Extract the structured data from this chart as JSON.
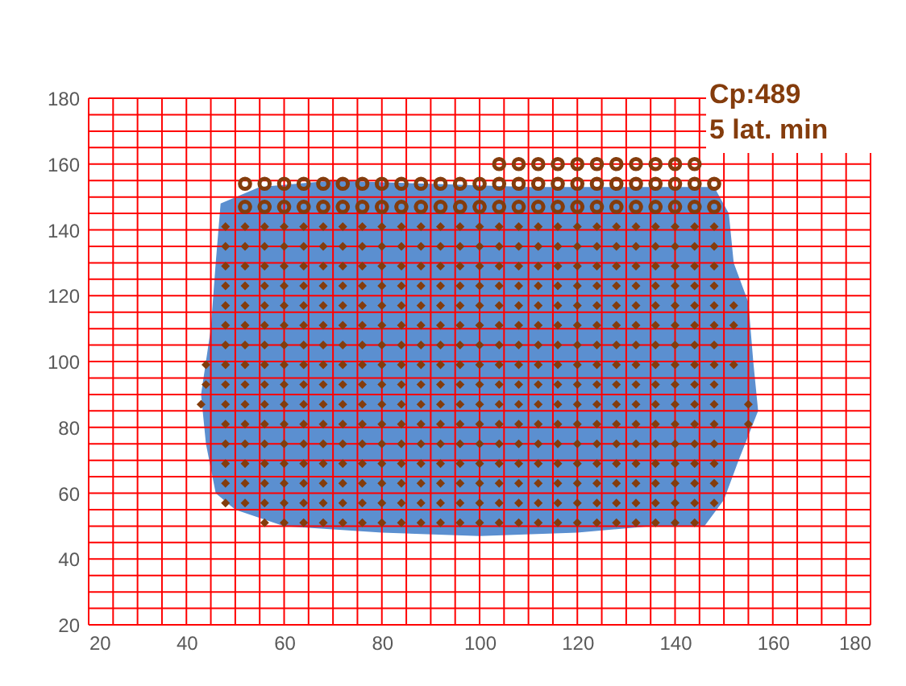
{
  "chart_data": {
    "type": "scatter",
    "xlim": [
      20,
      180
    ],
    "ylim": [
      20,
      180
    ],
    "xticks": [
      20,
      {
        "value": 25,
        "label": null
      },
      {
        "value": 30,
        "label": null
      },
      {
        "value": 35,
        "label": null
      },
      40,
      {
        "value": 45,
        "label": null
      },
      {
        "value": 50,
        "label": null
      },
      {
        "value": 55,
        "label": null
      },
      60,
      {
        "value": 65,
        "label": null
      },
      {
        "value": 70,
        "label": null
      },
      {
        "value": 75,
        "label": null
      },
      80,
      {
        "value": 85,
        "label": null
      },
      {
        "value": 90,
        "label": null
      },
      {
        "value": 95,
        "label": null
      },
      100,
      {
        "value": 105,
        "label": null
      },
      {
        "value": 110,
        "label": null
      },
      {
        "value": 115,
        "label": null
      },
      120,
      {
        "value": 125,
        "label": null
      },
      {
        "value": 130,
        "label": null
      },
      {
        "value": 135,
        "label": null
      },
      140,
      {
        "value": 145,
        "label": null
      },
      {
        "value": 150,
        "label": null
      },
      {
        "value": 155,
        "label": null
      },
      160,
      {
        "value": 165,
        "label": null
      },
      {
        "value": 170,
        "label": null
      },
      {
        "value": 175,
        "label": null
      },
      180
    ],
    "yticks": [
      20,
      {
        "value": 25,
        "label": null
      },
      {
        "value": 30,
        "label": null
      },
      {
        "value": 35,
        "label": null
      },
      40,
      {
        "value": 45,
        "label": null
      },
      {
        "value": 50,
        "label": null
      },
      {
        "value": 55,
        "label": null
      },
      60,
      {
        "value": 65,
        "label": null
      },
      {
        "value": 70,
        "label": null
      },
      {
        "value": 75,
        "label": null
      },
      80,
      {
        "value": 85,
        "label": null
      },
      {
        "value": 90,
        "label": null
      },
      {
        "value": 95,
        "label": null
      },
      100,
      {
        "value": 105,
        "label": null
      },
      {
        "value": 110,
        "label": null
      },
      {
        "value": 115,
        "label": null
      },
      120,
      {
        "value": 125,
        "label": null
      },
      {
        "value": 130,
        "label": null
      },
      {
        "value": 135,
        "label": null
      },
      140,
      {
        "value": 145,
        "label": null
      },
      {
        "value": 150,
        "label": null
      },
      {
        "value": 155,
        "label": null
      },
      160,
      {
        "value": 165,
        "label": null
      },
      {
        "value": 170,
        "label": null
      },
      {
        "value": 175,
        "label": null
      },
      180
    ],
    "grid": true,
    "annotations": [
      "Cp:489",
      "5 lat. min"
    ],
    "series": [
      {
        "type": "area",
        "color": "#5b8fd0",
        "x": [
          47,
          55,
          70,
          90,
          110,
          130,
          148,
          151,
          152,
          155,
          156,
          157,
          153,
          150,
          146,
          135,
          120,
          100,
          80,
          60,
          50,
          46,
          44,
          43,
          45,
          46,
          47
        ],
        "values": [
          148,
          153,
          155,
          154,
          153,
          153,
          153,
          145,
          130,
          118,
          100,
          85,
          70,
          58,
          50,
          50,
          48,
          47,
          48,
          50,
          55,
          60,
          75,
          90,
          110,
          130,
          148
        ]
      },
      {
        "marker": "circle",
        "color": "#843c0c",
        "x": [
          52,
          56,
          60,
          64,
          68,
          72,
          76,
          80,
          84,
          88,
          92,
          96,
          100,
          104,
          108,
          112,
          116,
          120,
          124,
          128,
          132,
          136,
          140,
          144,
          148,
          52,
          56,
          60,
          64,
          68,
          72,
          76,
          80,
          84,
          88,
          92,
          96,
          100,
          104,
          108,
          112,
          116,
          120,
          124,
          128,
          132,
          136,
          140,
          144,
          148,
          104,
          108,
          112,
          116,
          120,
          124,
          128,
          132,
          136,
          140,
          144
        ],
        "values": [
          147,
          147,
          147,
          147,
          147,
          147,
          147,
          147,
          147,
          147,
          147,
          147,
          147,
          147,
          147,
          147,
          147,
          147,
          147,
          147,
          147,
          147,
          147,
          147,
          147,
          154,
          154,
          154,
          154,
          154,
          154,
          154,
          154,
          154,
          154,
          154,
          154,
          154,
          154,
          154,
          154,
          154,
          154,
          154,
          154,
          154,
          154,
          154,
          154,
          154,
          160,
          160,
          160,
          160,
          160,
          160,
          160,
          160,
          160,
          160,
          160
        ]
      },
      {
        "marker": "diamond",
        "color": "#843c0c",
        "x": [
          56,
          60,
          64,
          68,
          72,
          76,
          80,
          84,
          88,
          92,
          96,
          100,
          104,
          108,
          112,
          116,
          120,
          124,
          128,
          132,
          136,
          140,
          144,
          48,
          52,
          56,
          60,
          64,
          68,
          72,
          76,
          80,
          84,
          88,
          92,
          96,
          100,
          104,
          108,
          112,
          116,
          120,
          124,
          128,
          132,
          136,
          140,
          144,
          148,
          48,
          52,
          56,
          60,
          64,
          68,
          72,
          76,
          80,
          84,
          88,
          92,
          96,
          100,
          104,
          108,
          112,
          116,
          120,
          124,
          128,
          132,
          136,
          140,
          144,
          148,
          48,
          52,
          56,
          60,
          64,
          68,
          72,
          76,
          80,
          84,
          88,
          92,
          96,
          100,
          104,
          108,
          112,
          116,
          120,
          124,
          128,
          132,
          136,
          140,
          144,
          148,
          48,
          52,
          56,
          60,
          64,
          68,
          72,
          76,
          80,
          84,
          88,
          92,
          96,
          100,
          104,
          108,
          112,
          116,
          120,
          124,
          128,
          132,
          136,
          140,
          144,
          148,
          48,
          52,
          56,
          60,
          64,
          68,
          72,
          76,
          80,
          84,
          88,
          92,
          96,
          100,
          104,
          108,
          112,
          116,
          120,
          124,
          128,
          132,
          136,
          140,
          144,
          148,
          48,
          52,
          56,
          60,
          64,
          68,
          72,
          76,
          80,
          84,
          88,
          92,
          96,
          100,
          104,
          108,
          112,
          116,
          120,
          124,
          128,
          132,
          136,
          140,
          144,
          148,
          48,
          52,
          56,
          60,
          64,
          68,
          72,
          76,
          80,
          84,
          88,
          92,
          96,
          100,
          104,
          108,
          112,
          116,
          120,
          124,
          128,
          132,
          136,
          140,
          144,
          148,
          48,
          52,
          56,
          60,
          64,
          68,
          72,
          76,
          80,
          84,
          88,
          92,
          96,
          100,
          104,
          108,
          112,
          116,
          120,
          124,
          128,
          132,
          136,
          140,
          144,
          148,
          48,
          52,
          56,
          60,
          64,
          68,
          72,
          76,
          80,
          84,
          88,
          92,
          96,
          100,
          104,
          108,
          112,
          116,
          120,
          124,
          128,
          132,
          136,
          140,
          144,
          148,
          48,
          52,
          56,
          60,
          64,
          68,
          72,
          76,
          80,
          84,
          88,
          92,
          96,
          100,
          104,
          108,
          112,
          116,
          120,
          124,
          128,
          132,
          136,
          140,
          144,
          148,
          48,
          52,
          56,
          60,
          64,
          68,
          72,
          76,
          80,
          84,
          88,
          92,
          96,
          100,
          104,
          108,
          112,
          116,
          120,
          124,
          128,
          132,
          136,
          140,
          144,
          148,
          48,
          52,
          56,
          60,
          64,
          68,
          72,
          76,
          80,
          84,
          88,
          92,
          96,
          100,
          104,
          108,
          112,
          116,
          120,
          124,
          128,
          132,
          136,
          140,
          144,
          148,
          48,
          52,
          56,
          60,
          64,
          68,
          72,
          76,
          80,
          84,
          88,
          92,
          96,
          100,
          104,
          108,
          112,
          116,
          120,
          124,
          128,
          132,
          136,
          140,
          144,
          148,
          48,
          52,
          56,
          60,
          64,
          68,
          72,
          76,
          80,
          84,
          88,
          92,
          96,
          100,
          104,
          108,
          112,
          116,
          120,
          124,
          128,
          132,
          136,
          140,
          144,
          148,
          48,
          52,
          56,
          60,
          64,
          68,
          72,
          76,
          80,
          84,
          88,
          92,
          96,
          100,
          104,
          108,
          112,
          116,
          120,
          124,
          128,
          132,
          136,
          140,
          144,
          148,
          44,
          43,
          44,
          155,
          155,
          152,
          152,
          152
        ],
        "values": [
          51,
          51,
          51,
          51,
          51,
          51,
          51,
          51,
          51,
          51,
          51,
          51,
          51,
          51,
          51,
          51,
          51,
          51,
          51,
          51,
          51,
          51,
          51,
          57,
          57,
          57,
          57,
          57,
          57,
          57,
          57,
          57,
          57,
          57,
          57,
          57,
          57,
          57,
          57,
          57,
          57,
          57,
          57,
          57,
          57,
          57,
          57,
          57,
          57,
          63,
          63,
          63,
          63,
          63,
          63,
          63,
          63,
          63,
          63,
          63,
          63,
          63,
          63,
          63,
          63,
          63,
          63,
          63,
          63,
          63,
          63,
          63,
          63,
          63,
          63,
          69,
          69,
          69,
          69,
          69,
          69,
          69,
          69,
          69,
          69,
          69,
          69,
          69,
          69,
          69,
          69,
          69,
          69,
          69,
          69,
          69,
          69,
          69,
          69,
          69,
          69,
          75,
          75,
          75,
          75,
          75,
          75,
          75,
          75,
          75,
          75,
          75,
          75,
          75,
          75,
          75,
          75,
          75,
          75,
          75,
          75,
          75,
          75,
          75,
          75,
          75,
          75,
          81,
          81,
          81,
          81,
          81,
          81,
          81,
          81,
          81,
          81,
          81,
          81,
          81,
          81,
          81,
          81,
          81,
          81,
          81,
          81,
          81,
          81,
          81,
          81,
          81,
          81,
          87,
          87,
          87,
          87,
          87,
          87,
          87,
          87,
          87,
          87,
          87,
          87,
          87,
          87,
          87,
          87,
          87,
          87,
          87,
          87,
          87,
          87,
          87,
          87,
          87,
          87,
          93,
          93,
          93,
          93,
          93,
          93,
          93,
          93,
          93,
          93,
          93,
          93,
          93,
          93,
          93,
          93,
          93,
          93,
          93,
          93,
          93,
          93,
          93,
          93,
          93,
          93,
          99,
          99,
          99,
          99,
          99,
          99,
          99,
          99,
          99,
          99,
          99,
          99,
          99,
          99,
          99,
          99,
          99,
          99,
          99,
          99,
          99,
          99,
          99,
          99,
          99,
          99,
          105,
          105,
          105,
          105,
          105,
          105,
          105,
          105,
          105,
          105,
          105,
          105,
          105,
          105,
          105,
          105,
          105,
          105,
          105,
          105,
          105,
          105,
          105,
          105,
          105,
          105,
          111,
          111,
          111,
          111,
          111,
          111,
          111,
          111,
          111,
          111,
          111,
          111,
          111,
          111,
          111,
          111,
          111,
          111,
          111,
          111,
          111,
          111,
          111,
          111,
          111,
          111,
          117,
          117,
          117,
          117,
          117,
          117,
          117,
          117,
          117,
          117,
          117,
          117,
          117,
          117,
          117,
          117,
          117,
          117,
          117,
          117,
          117,
          117,
          117,
          117,
          117,
          117,
          123,
          123,
          123,
          123,
          123,
          123,
          123,
          123,
          123,
          123,
          123,
          123,
          123,
          123,
          123,
          123,
          123,
          123,
          123,
          123,
          123,
          123,
          123,
          123,
          123,
          123,
          129,
          129,
          129,
          129,
          129,
          129,
          129,
          129,
          129,
          129,
          129,
          129,
          129,
          129,
          129,
          129,
          129,
          129,
          129,
          129,
          129,
          129,
          129,
          129,
          129,
          129,
          135,
          135,
          135,
          135,
          135,
          135,
          135,
          135,
          135,
          135,
          135,
          135,
          135,
          135,
          135,
          135,
          135,
          135,
          135,
          135,
          135,
          135,
          135,
          135,
          135,
          135,
          141,
          141,
          141,
          141,
          141,
          141,
          141,
          141,
          141,
          141,
          141,
          141,
          141,
          141,
          141,
          141,
          141,
          141,
          141,
          141,
          141,
          141,
          141,
          141,
          141,
          141,
          93,
          87,
          99,
          81,
          87,
          99,
          111,
          117
        ]
      }
    ]
  }
}
